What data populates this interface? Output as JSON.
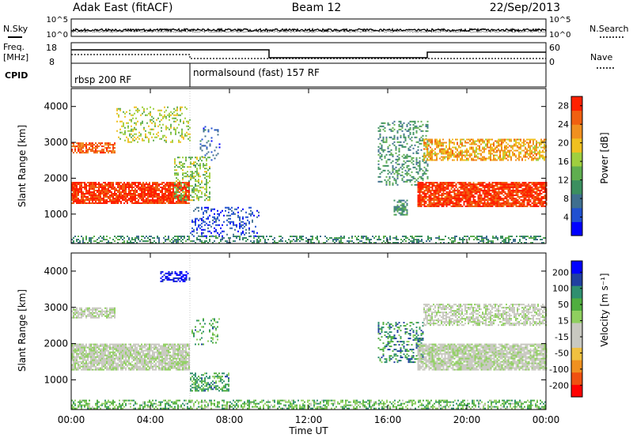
{
  "header": {
    "station": "Adak East (fitACF)",
    "beam": "Beam 12",
    "date": "22/Sep/2013"
  },
  "nsky_panel": {
    "left_label": "N.Sky",
    "right_label": "N.Search",
    "left_ticks": [
      "10^5",
      "10^0"
    ],
    "right_ticks": [
      "10^5",
      "10^0"
    ]
  },
  "freq_panel": {
    "left_label_line1": "Freq.",
    "left_label_line2": "[MHz]",
    "right_label": "Nave",
    "left_ticks": [
      "18",
      "8"
    ],
    "right_ticks": [
      "60",
      "0"
    ]
  },
  "cpid_panel": {
    "label": "CPID",
    "modes": [
      "rbsp 200 RF",
      "normalsound (fast) 157 RF"
    ],
    "mode_change_time": "06:00"
  },
  "chart_data": [
    {
      "type": "heatmap",
      "title": "",
      "xlabel": "Time UT",
      "ylabel": "Slant Range [km]",
      "x_ticks": [
        "00:00",
        "04:00",
        "08:00",
        "12:00",
        "16:00",
        "20:00",
        "00:00"
      ],
      "y_ticks": [
        "1000",
        "2000",
        "3000",
        "4000"
      ],
      "xlim_hours": [
        0,
        24
      ],
      "ylim_km": [
        180,
        4500
      ],
      "colorbar": {
        "label": "Power [dB]",
        "ticks": [
          "4",
          "8",
          "12",
          "16",
          "20",
          "24",
          "28"
        ],
        "range": [
          0,
          30
        ],
        "colors": [
          "#0000ff",
          "#2050d0",
          "#3f6f8f",
          "#3b8f5f",
          "#5fae4f",
          "#9fcf3f",
          "#f0c020",
          "#f09020",
          "#f06010",
          "#ff2000"
        ]
      },
      "scatter_regions": [
        {
          "t0": 0.0,
          "t1": 6.0,
          "r0": 1300,
          "r1": 1900,
          "level": 0.93,
          "density": 0.85
        },
        {
          "t0": 0.0,
          "t1": 2.2,
          "r0": 2700,
          "r1": 3000,
          "level": 0.85,
          "density": 0.7
        },
        {
          "t0": 2.2,
          "t1": 6.0,
          "r0": 3000,
          "r1": 4000,
          "level": 0.55,
          "density": 0.25
        },
        {
          "t0": 5.2,
          "t1": 7.0,
          "r0": 1400,
          "r1": 2600,
          "level": 0.5,
          "density": 0.35
        },
        {
          "t0": 6.0,
          "t1": 9.5,
          "r0": 400,
          "r1": 1200,
          "level": 0.15,
          "density": 0.25
        },
        {
          "t0": 6.5,
          "t1": 7.5,
          "r0": 2500,
          "r1": 3500,
          "level": 0.2,
          "density": 0.2
        },
        {
          "t0": 15.5,
          "t1": 18.0,
          "r0": 1800,
          "r1": 3600,
          "level": 0.35,
          "density": 0.3
        },
        {
          "t0": 16.3,
          "t1": 17.0,
          "r0": 1000,
          "r1": 1400,
          "level": 0.35,
          "density": 0.6
        },
        {
          "t0": 17.5,
          "t1": 24.0,
          "r0": 1200,
          "r1": 1900,
          "level": 0.92,
          "density": 0.85
        },
        {
          "t0": 17.8,
          "t1": 24.0,
          "r0": 2500,
          "r1": 3100,
          "level": 0.7,
          "density": 0.6
        },
        {
          "t0": 0.0,
          "t1": 24.0,
          "r0": 200,
          "r1": 400,
          "level": 0.35,
          "density": 0.4
        }
      ]
    },
    {
      "type": "heatmap",
      "title": "",
      "xlabel": "Time UT",
      "ylabel": "Slant Range [km]",
      "x_ticks": [
        "00:00",
        "04:00",
        "08:00",
        "12:00",
        "16:00",
        "20:00",
        "00:00"
      ],
      "y_ticks": [
        "1000",
        "2000",
        "3000",
        "4000"
      ],
      "xlim_hours": [
        0,
        24
      ],
      "ylim_km": [
        180,
        4500
      ],
      "colorbar": {
        "label": "Velocity [m s⁻¹]",
        "ticks": [
          "200",
          "100",
          "50",
          "15",
          "-15",
          "-50",
          "-100",
          "-200"
        ],
        "range": [
          -250,
          250
        ],
        "colors": [
          "#ff0000",
          "#f05010",
          "#f09020",
          "#f0c040",
          "#c8c8c0",
          "#c8c8c0",
          "#8fcf5f",
          "#4fae3f",
          "#2f8f6f",
          "#203fa0",
          "#0000ff"
        ]
      },
      "scatter_regions": [
        {
          "t0": 0.0,
          "t1": 6.0,
          "r0": 1300,
          "r1": 2000,
          "level": 0.5,
          "density": 0.85
        },
        {
          "t0": 0.0,
          "t1": 2.2,
          "r0": 2700,
          "r1": 3000,
          "level": 0.5,
          "density": 0.7
        },
        {
          "t0": 4.5,
          "t1": 6.0,
          "r0": 3700,
          "r1": 4000,
          "level": 0.97,
          "density": 0.5
        },
        {
          "t0": 6.0,
          "t1": 8.0,
          "r0": 700,
          "r1": 1200,
          "level": 0.72,
          "density": 0.5
        },
        {
          "t0": 6.0,
          "t1": 7.5,
          "r0": 2000,
          "r1": 2700,
          "level": 0.7,
          "density": 0.2
        },
        {
          "t0": 15.5,
          "t1": 17.8,
          "r0": 1500,
          "r1": 2600,
          "level": 0.75,
          "density": 0.35
        },
        {
          "t0": 17.5,
          "t1": 24.0,
          "r0": 1300,
          "r1": 2000,
          "level": 0.5,
          "density": 0.85
        },
        {
          "t0": 17.8,
          "t1": 24.0,
          "r0": 2500,
          "r1": 3100,
          "level": 0.5,
          "density": 0.6
        },
        {
          "t0": 0.0,
          "t1": 24.0,
          "r0": 200,
          "r1": 450,
          "level": 0.65,
          "density": 0.5
        }
      ]
    }
  ]
}
